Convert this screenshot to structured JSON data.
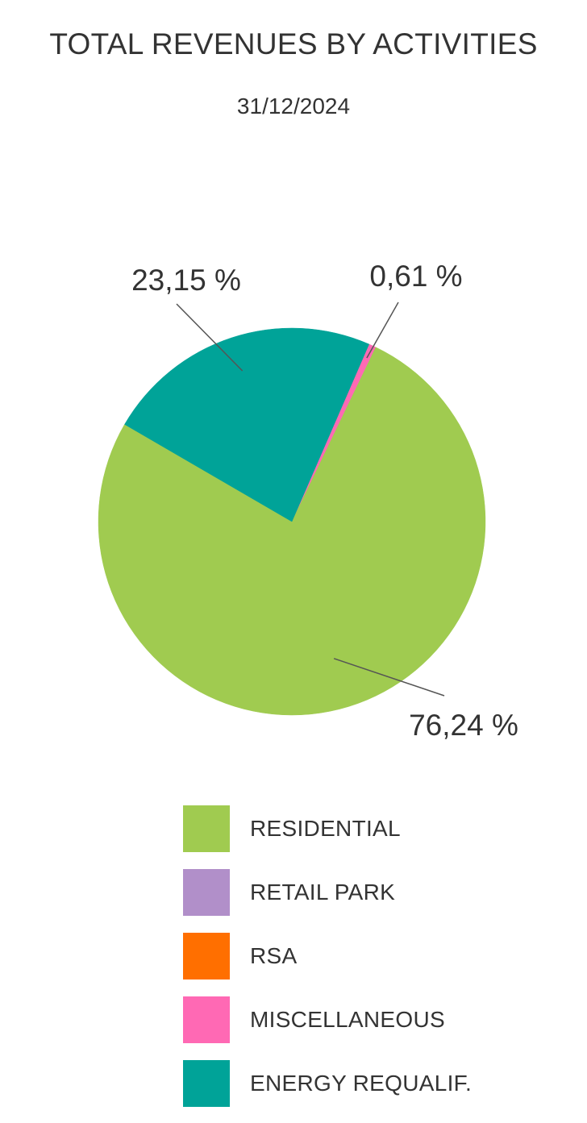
{
  "title": "TOTAL REVENUES BY ACTIVITIES",
  "subtitle": "31/12/2024",
  "chart_data": {
    "type": "pie",
    "title": "TOTAL REVENUES BY ACTIVITIES",
    "subtitle": "31/12/2024",
    "legend_position": "bottom",
    "slices": [
      {
        "label": "RESIDENTIAL",
        "value": 76.24,
        "value_label": "76,24 %",
        "color": "#A0CB50"
      },
      {
        "label": "RETAIL PARK",
        "value": 0,
        "value_label": "",
        "color": "#B18FC9"
      },
      {
        "label": "RSA",
        "value": 0,
        "value_label": "",
        "color": "#FF6F00"
      },
      {
        "label": "MISCELLANEOUS",
        "value": 0.61,
        "value_label": "0,61 %",
        "color": "#FF69B4"
      },
      {
        "label": "ENERGY REQUALIF.",
        "value": 23.15,
        "value_label": "23,15 %",
        "color": "#00A398"
      }
    ]
  }
}
